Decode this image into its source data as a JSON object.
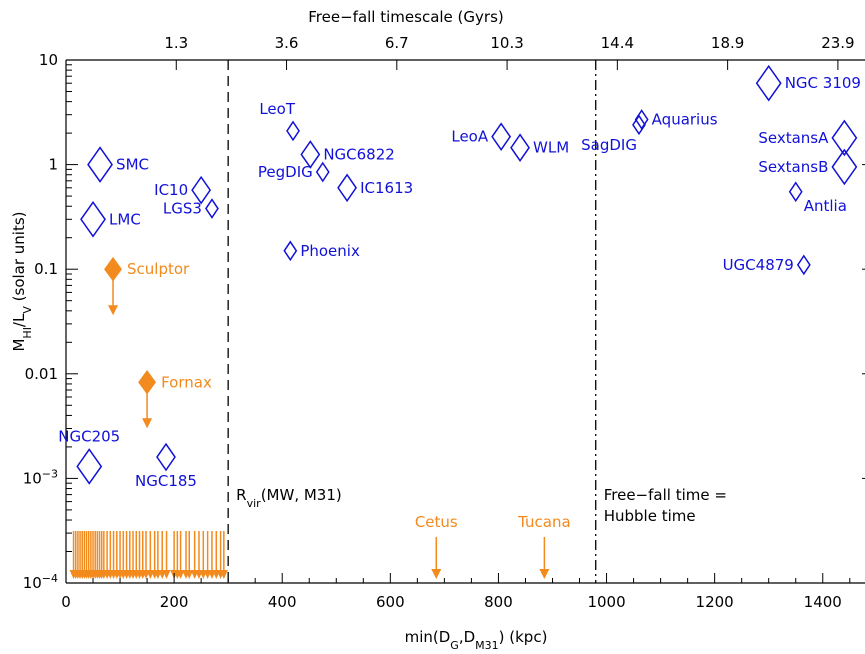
{
  "chart_data": {
    "type": "scatter",
    "xlabel_parts": [
      "min(D",
      "G",
      ",D",
      "M31",
      ") (kpc)"
    ],
    "ylabel_parts": [
      "M",
      "HI",
      "/L",
      "V",
      " (solar units)"
    ],
    "top_axis_title": "Free−fall timescale (Gyrs)",
    "x_range": [
      0,
      1480
    ],
    "y_range_log10": [
      -4,
      1
    ],
    "y_scale": "log",
    "x_ticks": [
      {
        "value": 0,
        "label": "0"
      },
      {
        "value": 200,
        "label": "200"
      },
      {
        "value": 400,
        "label": "400"
      },
      {
        "value": 600,
        "label": "600"
      },
      {
        "value": 800,
        "label": "800"
      },
      {
        "value": 1000,
        "label": "1000"
      },
      {
        "value": 1200,
        "label": "1200"
      },
      {
        "value": 1400,
        "label": "1400"
      }
    ],
    "y_ticks": [
      {
        "exp": 1,
        "label": "10"
      },
      {
        "exp": 0,
        "label": "1"
      },
      {
        "exp": -1,
        "label": "0.1"
      },
      {
        "exp": -2,
        "label": "0.01"
      },
      {
        "exp": -3,
        "label": "10",
        "sup": "−3"
      },
      {
        "exp": -4,
        "label": "10",
        "sup": "−4"
      }
    ],
    "top_ticks": [
      {
        "x": 204,
        "label": "1.3"
      },
      {
        "x": 408,
        "label": "3.6"
      },
      {
        "x": 612,
        "label": "6.7"
      },
      {
        "x": 816,
        "label": "10.3"
      },
      {
        "x": 1020,
        "label": "14.4"
      },
      {
        "x": 1224,
        "label": "18.9"
      },
      {
        "x": 1428,
        "label": "23.9"
      }
    ],
    "vlines": [
      {
        "x": 300,
        "style": "dashed",
        "label_main": "R",
        "label_sub": "vir",
        "label_rest": "(MW, M31)"
      },
      {
        "x": 980,
        "style": "dashdot",
        "label_lines": [
          "Free−fall time =",
          "Hubble time"
        ]
      }
    ],
    "detections": [
      {
        "name": "NGC 3109",
        "x": 1300,
        "y": 6.0,
        "size": "large",
        "label_pos": "right"
      },
      {
        "name": "Aquarius",
        "x": 1065,
        "y": 2.7,
        "size": "small",
        "label_pos": "right"
      },
      {
        "name": "SagDIG",
        "x": 1060,
        "y": 2.4,
        "size": "small",
        "label_pos": "below-left"
      },
      {
        "name": "SextansA",
        "x": 1440,
        "y": 1.8,
        "size": "large",
        "label_pos": "left"
      },
      {
        "name": "SextansB",
        "x": 1440,
        "y": 0.95,
        "size": "large",
        "label_pos": "left"
      },
      {
        "name": "Antlia",
        "x": 1350,
        "y": 0.55,
        "size": "small",
        "label_pos": "below-right"
      },
      {
        "name": "UGC4879",
        "x": 1365,
        "y": 0.11,
        "size": "small",
        "label_pos": "left"
      },
      {
        "name": "LeoA",
        "x": 805,
        "y": 1.85,
        "size": "medium",
        "label_pos": "left"
      },
      {
        "name": "WLM",
        "x": 840,
        "y": 1.45,
        "size": "medium",
        "label_pos": "right"
      },
      {
        "name": "LeoT",
        "x": 420,
        "y": 2.1,
        "size": "small",
        "label_pos": "above-left"
      },
      {
        "name": "NGC6822",
        "x": 452,
        "y": 1.25,
        "size": "medium",
        "label_pos": "right"
      },
      {
        "name": "PegDIG",
        "x": 475,
        "y": 0.85,
        "size": "small",
        "label_pos": "left"
      },
      {
        "name": "IC1613",
        "x": 520,
        "y": 0.6,
        "size": "medium",
        "label_pos": "right"
      },
      {
        "name": "Phoenix",
        "x": 415,
        "y": 0.15,
        "size": "small",
        "label_pos": "right"
      },
      {
        "name": "IC10",
        "x": 250,
        "y": 0.57,
        "size": "medium",
        "label_pos": "left"
      },
      {
        "name": "LGS3",
        "x": 270,
        "y": 0.38,
        "size": "small",
        "label_pos": "left"
      },
      {
        "name": "SMC",
        "x": 63,
        "y": 1.0,
        "size": "large",
        "label_pos": "right"
      },
      {
        "name": "LMC",
        "x": 50,
        "y": 0.3,
        "size": "large",
        "label_pos": "right"
      },
      {
        "name": "NGC205",
        "x": 43,
        "y": 0.0013,
        "size": "large",
        "label_pos": "above"
      },
      {
        "name": "NGC185",
        "x": 185,
        "y": 0.0016,
        "size": "medium",
        "label_pos": "below"
      }
    ],
    "upper_limits": [
      {
        "name": "Sculptor",
        "x": 87,
        "y": 0.1,
        "label_pos": "right"
      },
      {
        "name": "Fornax",
        "x": 150,
        "y": 0.0083,
        "label_pos": "right"
      }
    ],
    "floor_limits": [
      {
        "name": "Cetus",
        "x": 685
      },
      {
        "name": "Tucana",
        "x": 885
      }
    ],
    "floor_limit_x": [
      14,
      18,
      22,
      26,
      30,
      34,
      38,
      42,
      46,
      50,
      54,
      58,
      62,
      66,
      70,
      76,
      82,
      88,
      94,
      100,
      106,
      112,
      118,
      124,
      130,
      136,
      142,
      148,
      156,
      164,
      170,
      178,
      186,
      200,
      206,
      212,
      222,
      228,
      238,
      246,
      254,
      262,
      270,
      278,
      286,
      292
    ],
    "colors": {
      "detection": "#1111d8",
      "limit": "#f28a1e",
      "axis": "#000000"
    }
  }
}
